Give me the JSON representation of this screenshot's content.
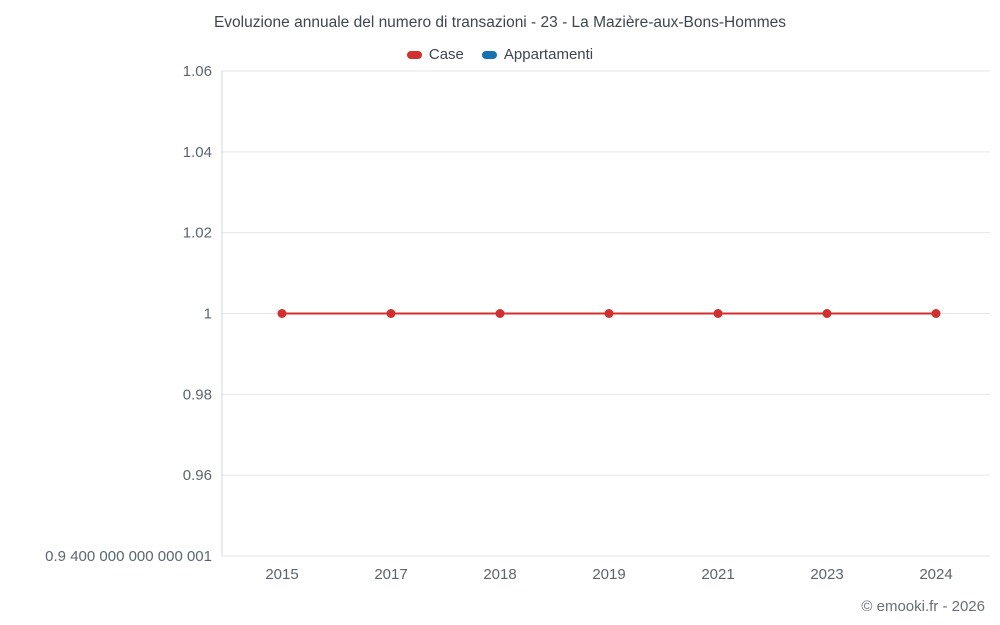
{
  "title": "Evoluzione annuale del numero di transazioni - 23 - La Mazière-aux-Bons-Hommes",
  "legend": [
    {
      "label": "Case",
      "color": "#d32f2f"
    },
    {
      "label": "Appartamenti",
      "color": "#1673b1"
    }
  ],
  "footer": "© emooki.fr - 2026",
  "colors": {
    "grid": "#e6e6e6",
    "axis": "#cfd8dc",
    "tick_text": "#5b6570",
    "title_text": "#3e4652"
  },
  "chart_data": {
    "type": "line",
    "title": "Evoluzione annuale del numero di transazioni - 23 - La Mazière-aux-Bons-Hommes",
    "categories": [
      "2015",
      "2017",
      "2018",
      "2019",
      "2021",
      "2023",
      "2024"
    ],
    "series": [
      {
        "name": "Case",
        "color": "#d32f2f",
        "values": [
          1,
          1,
          1,
          1,
          1,
          1,
          1
        ]
      },
      {
        "name": "Appartamenti",
        "color": "#1673b1",
        "values": []
      }
    ],
    "yticks": [
      {
        "value": 1.06,
        "label": "1.06"
      },
      {
        "value": 1.04,
        "label": "1.04"
      },
      {
        "value": 1.02,
        "label": "1.02"
      },
      {
        "value": 1.0,
        "label": "1"
      },
      {
        "value": 0.98,
        "label": "0.98"
      },
      {
        "value": 0.96,
        "label": "0.96"
      },
      {
        "value": 0.94,
        "label": "0.9 400 000 000 000 001"
      }
    ],
    "ylim": [
      0.94,
      1.06
    ],
    "xlabel": "",
    "ylabel": "",
    "grid": true,
    "legend_position": "top"
  }
}
